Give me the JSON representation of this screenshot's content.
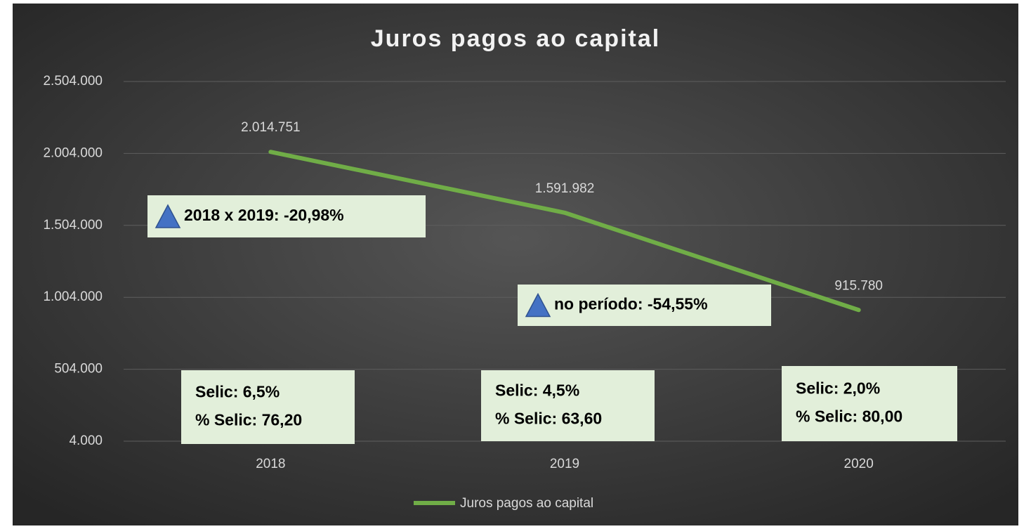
{
  "chart_data": {
    "type": "line",
    "title": "Juros pagos ao capital",
    "categories": [
      "2018",
      "2019",
      "2020"
    ],
    "series": [
      {
        "name": "Juros pagos ao capital",
        "color": "#70ad47",
        "values": [
          2014751,
          1591982,
          915780
        ],
        "value_labels": [
          "2.014.751",
          "1.591.982",
          "915.780"
        ]
      }
    ],
    "ylim": [
      4000,
      2504000
    ],
    "yticks": [
      {
        "value": 4000,
        "label": "4.000"
      },
      {
        "value": 504000,
        "label": "504.000"
      },
      {
        "value": 1004000,
        "label": "1.004.000"
      },
      {
        "value": 1504000,
        "label": "1.504.000"
      },
      {
        "value": 2004000,
        "label": "2.004.000"
      },
      {
        "value": 2504000,
        "label": "2.504.000"
      }
    ],
    "grid": true,
    "legend": "bottom",
    "annotations": [
      [
        "2018 x 2019: -20,98%"
      ],
      [
        "no período: -54,55%"
      ],
      [
        "Selic: 6,5%",
        "% Selic: 76,20"
      ],
      [
        "Selic: 4,5%",
        "% Selic: 63,60"
      ],
      [
        "Selic: 2,0%",
        "% Selic: 80,00"
      ]
    ]
  }
}
